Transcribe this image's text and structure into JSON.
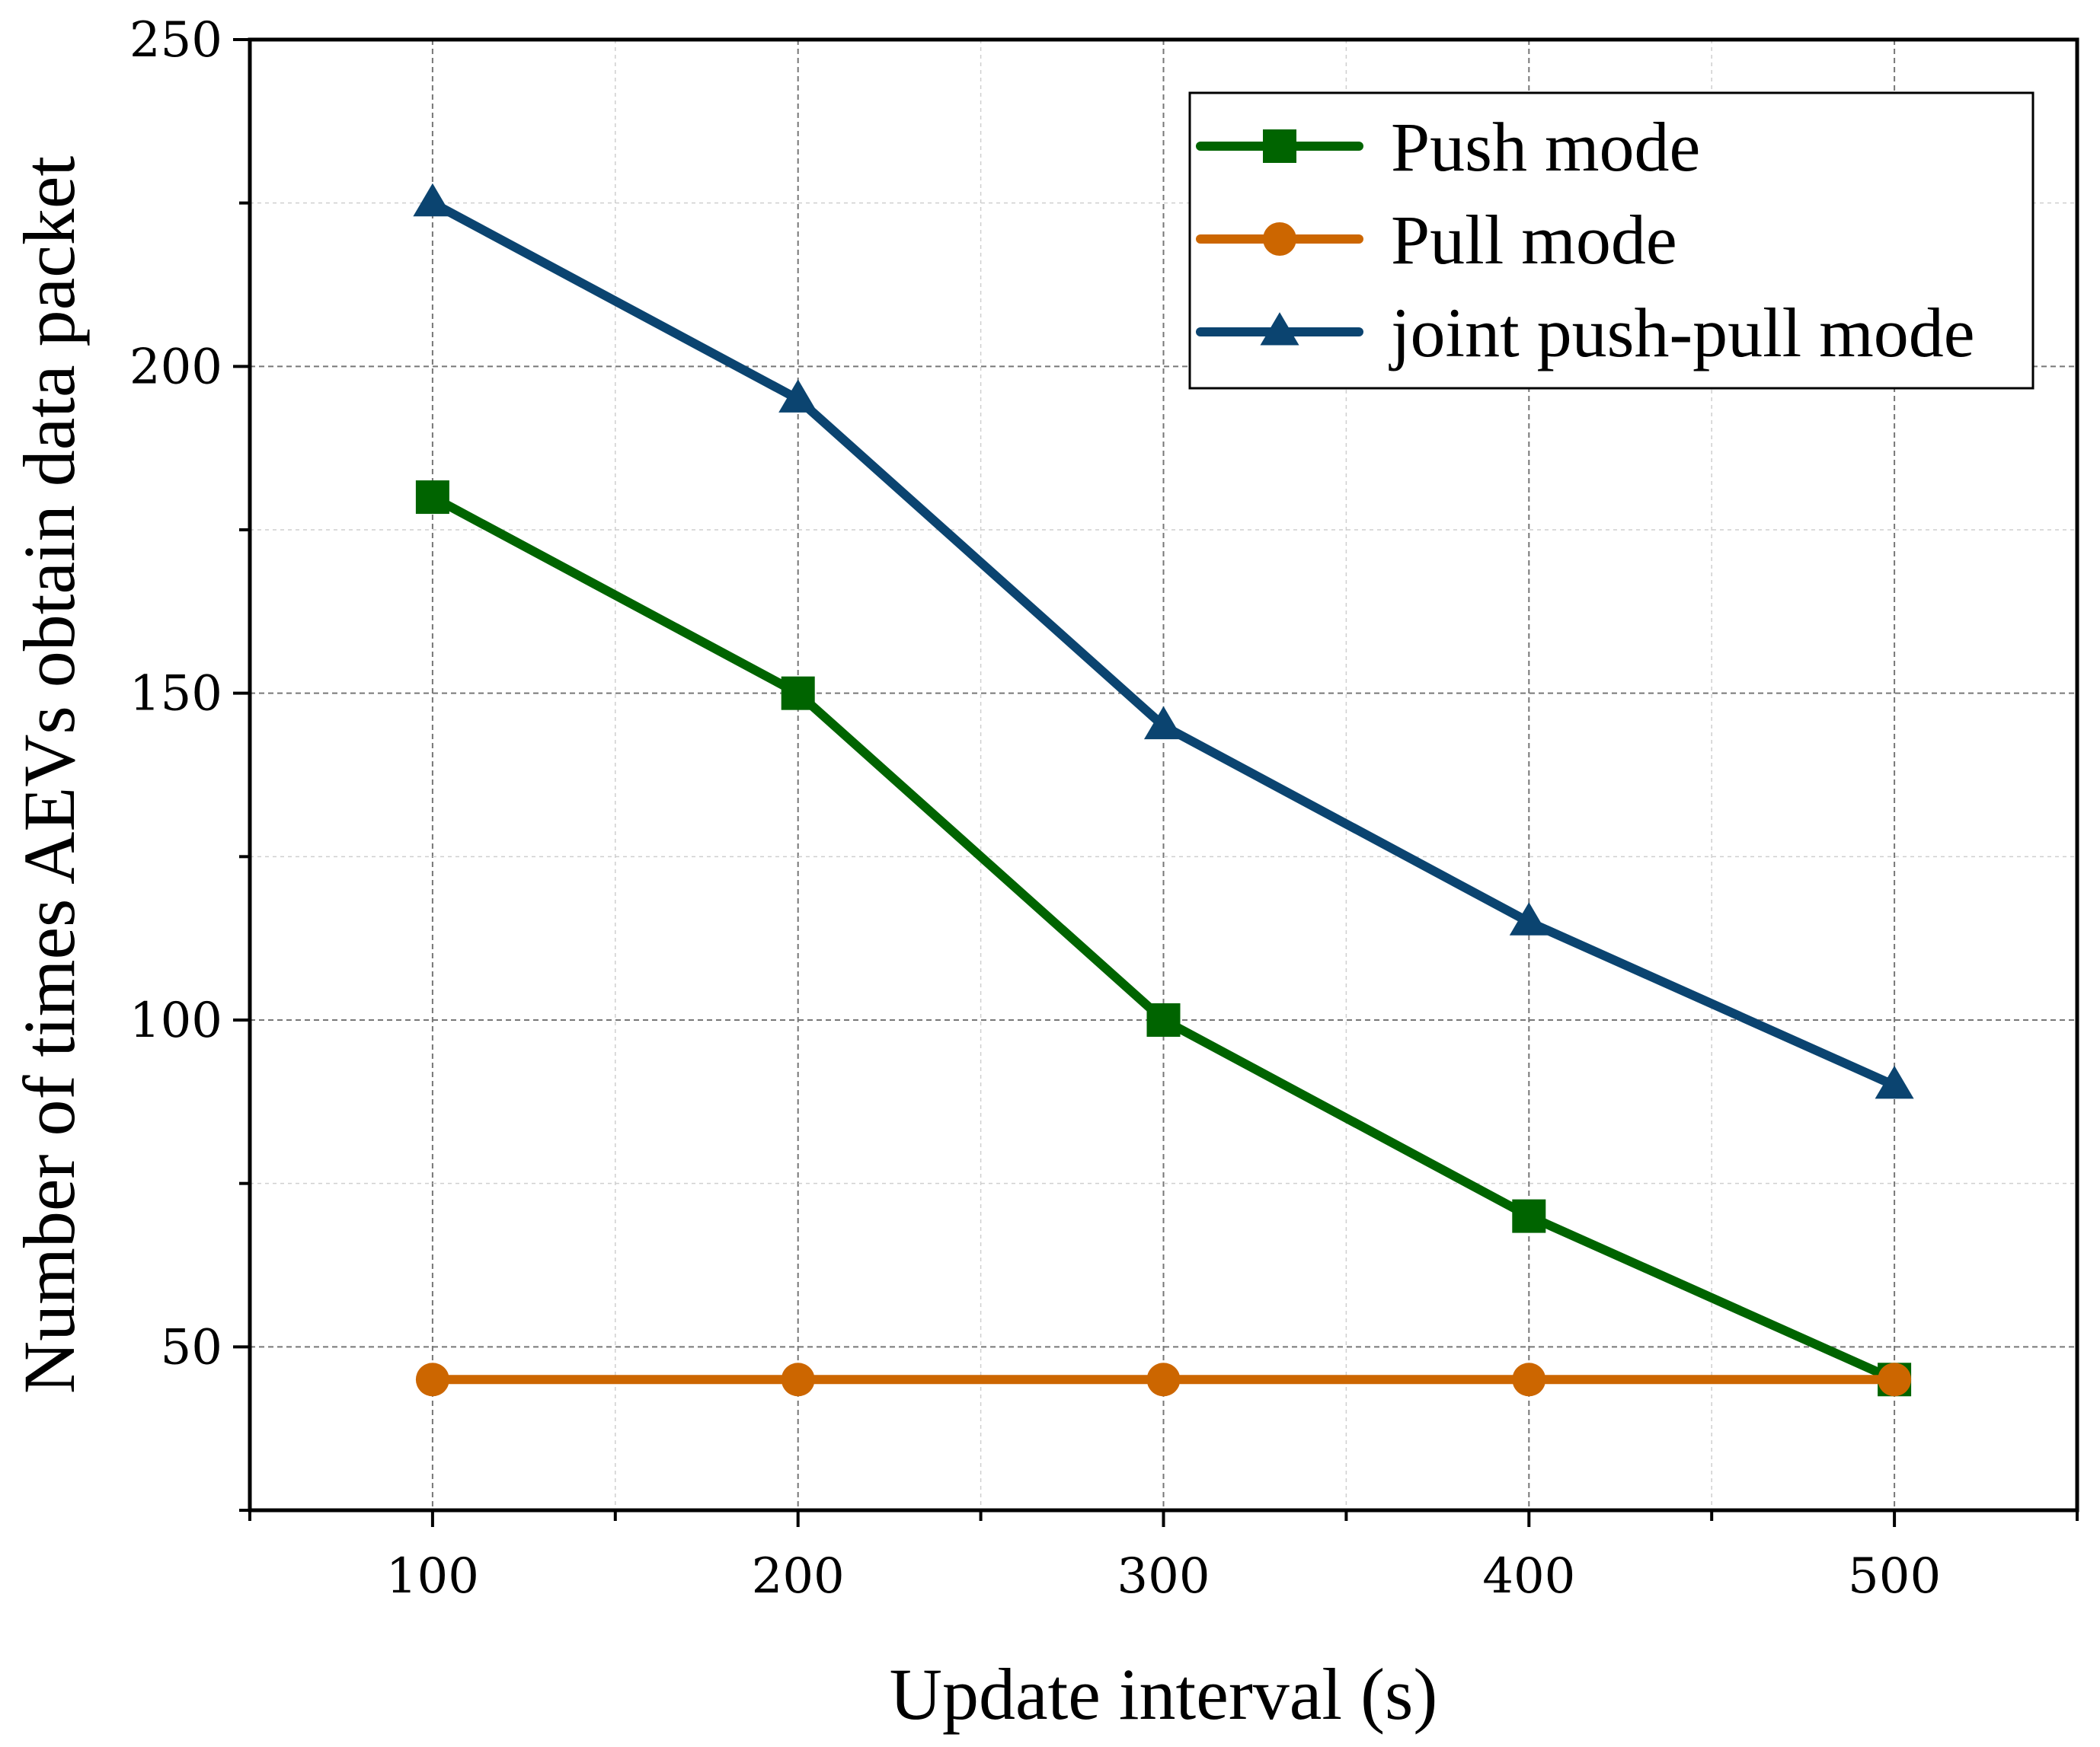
{
  "chart_data": {
    "type": "line",
    "title": "",
    "xlabel": "Update interval (s)",
    "ylabel": "Number of times AEVs obtain data packet",
    "x": [
      100,
      200,
      300,
      400,
      500
    ],
    "xlim": [
      50,
      550
    ],
    "ylim": [
      25,
      250
    ],
    "xticks": [
      100,
      200,
      300,
      400,
      500
    ],
    "xtick_labels": [
      "100",
      "200",
      "300",
      "400",
      "500"
    ],
    "yticks": [
      50,
      100,
      150,
      200,
      250
    ],
    "ytick_labels": [
      "50",
      "100",
      "150",
      "200",
      "250"
    ],
    "grid": true,
    "legend_position": "top-right",
    "series": [
      {
        "name": "Push mode",
        "values": [
          180,
          150,
          100,
          70,
          45
        ],
        "color": "#006400",
        "marker": "square"
      },
      {
        "name": "Pull mode",
        "values": [
          45,
          45,
          45,
          45,
          45
        ],
        "color": "#cc6600",
        "marker": "circle"
      },
      {
        "name": "joint push-pull mode",
        "values": [
          225,
          195,
          145,
          115,
          90
        ],
        "color": "#0b4470",
        "marker": "triangle"
      }
    ]
  }
}
